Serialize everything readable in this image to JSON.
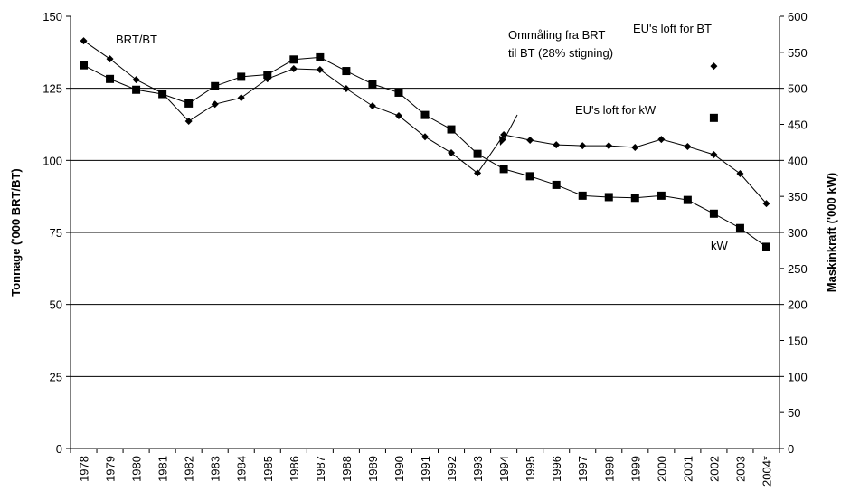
{
  "chart_data": {
    "type": "line",
    "categories": [
      "1978",
      "1979",
      "1980",
      "1981",
      "1982",
      "1983",
      "1984",
      "1985",
      "1986",
      "1987",
      "1988",
      "1989",
      "1990",
      "1991",
      "1992",
      "1993",
      "1994",
      "1995",
      "1996",
      "1997",
      "1998",
      "1999",
      "2000",
      "2001",
      "2002",
      "2003",
      "2004*"
    ],
    "series": [
      {
        "name": "BRT/BT",
        "color": "#000000",
        "marker": "diamond",
        "line": true,
        "axis": "y",
        "values": [
          141.5,
          135.2,
          128,
          123.3,
          113.6,
          119.5,
          121.7,
          128.3,
          131.8,
          131.5,
          124.9,
          118.9,
          115.5,
          108.2,
          102.6,
          95.6,
          108.9,
          107,
          105.4,
          105.1,
          105.1,
          104.5,
          107.3,
          104.8,
          102,
          95.4,
          85
        ]
      },
      {
        "name": "kW",
        "color": "#000000",
        "marker": "square",
        "line": true,
        "axis": "y2",
        "values": [
          532,
          513,
          498,
          492,
          479,
          503,
          516,
          519,
          540,
          543,
          524,
          506,
          494,
          463,
          443,
          409,
          388,
          378,
          366,
          351,
          349,
          348,
          351,
          345,
          326,
          306,
          280
        ]
      },
      {
        "name": "EU's loft for BT",
        "color": "#000000",
        "marker": "diamond",
        "line": false,
        "axis": "y",
        "values": [
          null,
          null,
          null,
          null,
          null,
          null,
          null,
          null,
          null,
          null,
          null,
          null,
          null,
          null,
          null,
          null,
          null,
          null,
          null,
          null,
          null,
          null,
          null,
          null,
          132.7,
          null,
          null
        ]
      },
      {
        "name": "EU's loft for kW",
        "color": "#000000",
        "marker": "square",
        "line": false,
        "axis": "y2",
        "values": [
          null,
          null,
          null,
          null,
          null,
          null,
          null,
          null,
          null,
          null,
          null,
          null,
          null,
          null,
          null,
          null,
          null,
          null,
          null,
          null,
          null,
          null,
          null,
          null,
          459,
          null,
          null
        ]
      }
    ],
    "annotation": [
      "Ommåling fra BRT",
      "til BT (28% stigning)"
    ],
    "ylabel": "Tonnage ('000 BRT/BT)",
    "y2label": "Maskinkraft ('000 kW)",
    "ylim": [
      0,
      150
    ],
    "yticks": [
      0,
      25,
      50,
      75,
      100,
      125,
      150
    ],
    "y2lim": [
      0,
      600
    ],
    "y2ticks": [
      0,
      50,
      100,
      150,
      200,
      250,
      300,
      350,
      400,
      450,
      500,
      550,
      600
    ],
    "grid": true
  }
}
